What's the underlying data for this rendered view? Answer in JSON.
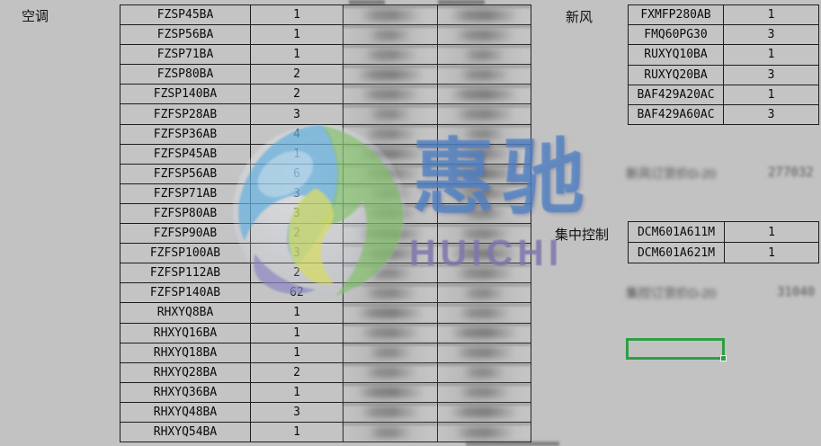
{
  "labels": {
    "ac": "空调",
    "fresh_air": "新风",
    "central_control": "集中控制"
  },
  "ac_table": {
    "rows": [
      {
        "model": "FZSP45BA",
        "qty": "1"
      },
      {
        "model": "FZSP56BA",
        "qty": "1"
      },
      {
        "model": "FZSP71BA",
        "qty": "1"
      },
      {
        "model": "FZSP80BA",
        "qty": "2"
      },
      {
        "model": "FZSP140BA",
        "qty": "2"
      },
      {
        "model": "FZFSP28AB",
        "qty": "3"
      },
      {
        "model": "FZFSP36AB",
        "qty": "4"
      },
      {
        "model": "FZFSP45AB",
        "qty": "1"
      },
      {
        "model": "FZFSP56AB",
        "qty": "6"
      },
      {
        "model": "FZFSP71AB",
        "qty": "3"
      },
      {
        "model": "FZFSP80AB",
        "qty": "3"
      },
      {
        "model": "FZFSP90AB",
        "qty": "2"
      },
      {
        "model": "FZFSP100AB",
        "qty": "3"
      },
      {
        "model": "FZFSP112AB",
        "qty": "2"
      },
      {
        "model": "FZFSP140AB",
        "qty": "62"
      },
      {
        "model": "RHXYQ8BA",
        "qty": "1"
      },
      {
        "model": "RHXYQ16BA",
        "qty": "1"
      },
      {
        "model": "RHXYQ18BA",
        "qty": "1"
      },
      {
        "model": "RHXYQ28BA",
        "qty": "2"
      },
      {
        "model": "RHXYQ36BA",
        "qty": "1"
      },
      {
        "model": "RHXYQ48BA",
        "qty": "3"
      },
      {
        "model": "RHXYQ54BA",
        "qty": "1"
      }
    ]
  },
  "fresh_air_table": {
    "rows": [
      {
        "model": "FXMFP280AB",
        "qty": "1"
      },
      {
        "model": "FMQ60PG30",
        "qty": "3"
      },
      {
        "model": "RUXYQ10BA",
        "qty": "1"
      },
      {
        "model": "RUXYQ20BA",
        "qty": "3"
      },
      {
        "model": "BAF429A20AC",
        "qty": "1"
      },
      {
        "model": "BAF429A60AC",
        "qty": "3"
      }
    ]
  },
  "central_control_table": {
    "rows": [
      {
        "model": "DCM601A611M",
        "qty": "1"
      },
      {
        "model": "DCM601A621M",
        "qty": "1"
      }
    ]
  },
  "redacted": {
    "fresh_air_price_label": "新风订货价D-20",
    "fresh_air_price_value": "277032",
    "central_price_label": "集控订货价D-20",
    "central_price_value": "31040"
  },
  "watermark": {
    "cn": "惠驰",
    "en": "HUICHI"
  },
  "colors": {
    "selection_green": "#2e9e44",
    "watermark_blue": "#4e82c4",
    "watermark_purple": "#7c75ad",
    "background": "#c2c2c3"
  }
}
